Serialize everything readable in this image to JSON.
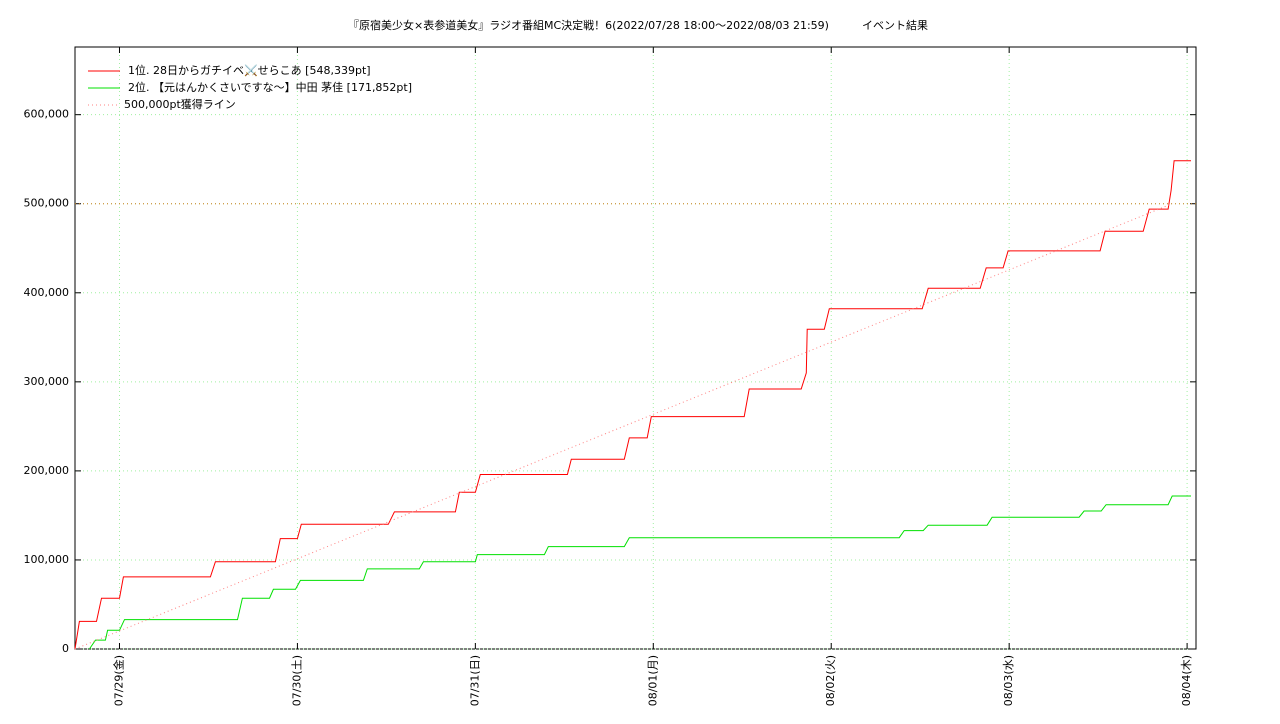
{
  "chart_data": {
    "type": "line",
    "title": "『原宿美少女×表参道美女』ラジオ番組MC決定戦！6(2022/07/28 18:00～2022/08/03 21:59)　　　イベント結果",
    "xlim": [
      -0.25,
      6.05
    ],
    "xticks": [
      {
        "value": 0,
        "label": "07/29(金)"
      },
      {
        "value": 1,
        "label": "07/30(土)"
      },
      {
        "value": 2,
        "label": "07/31(日)"
      },
      {
        "value": 3,
        "label": "08/01(月)"
      },
      {
        "value": 4,
        "label": "08/02(火)"
      },
      {
        "value": 5,
        "label": "08/03(水)"
      },
      {
        "value": 6,
        "label": "08/04(木)"
      }
    ],
    "ylim": [
      0,
      676000
    ],
    "yticks": [
      0,
      {
        "value": 100000,
        "label": "100,000"
      },
      {
        "value": 200000,
        "label": "200,000"
      },
      {
        "value": 300000,
        "label": "300,000"
      },
      {
        "value": 400000,
        "label": "400,000"
      },
      {
        "value": 500000,
        "label": "500,000"
      },
      {
        "value": 600000,
        "label": "600,000"
      }
    ],
    "grid": true,
    "grid_color": "#a0f0a0",
    "legend": "top-left",
    "hline": {
      "value": 500000,
      "color": "#d08020"
    },
    "series": [
      {
        "name": "1位. 28日からガチイベ⚔️せらこあ [548,339pt]",
        "color": "#ff0000",
        "style": "solid",
        "x": [
          -0.25,
          -0.225,
          -0.129,
          -0.101,
          0,
          0.022,
          0.511,
          0.539,
          0.876,
          0.904,
          1.0,
          1.022,
          1.511,
          1.545,
          1.888,
          1.91,
          2.0,
          2.028,
          2.517,
          2.539,
          2.837,
          2.865,
          2.966,
          2.989,
          3.511,
          3.539,
          3.831,
          3.86,
          3.865,
          3.961,
          3.989,
          4.511,
          4.545,
          4.837,
          4.871,
          4.966,
          4.994,
          5.511,
          5.539,
          5.753,
          5.787,
          5.893,
          5.91,
          5.927,
          6.022
        ],
        "values": [
          0,
          31000,
          31000,
          57000,
          57000,
          81000,
          81000,
          98000,
          98000,
          124000,
          124000,
          140000,
          140000,
          154000,
          154000,
          176000,
          176000,
          196000,
          196000,
          213000,
          213000,
          237000,
          237000,
          261000,
          261000,
          292000,
          292000,
          310000,
          359000,
          359000,
          382000,
          382000,
          405000,
          405000,
          428000,
          428000,
          447000,
          447000,
          469000,
          469000,
          494000,
          494000,
          515000,
          548339,
          548339
        ]
      },
      {
        "name": "2位. 【元はんかくさいですな〜】中田 茅佳 [171,852pt]",
        "color": "#00e000",
        "style": "solid",
        "x": [
          -0.169,
          -0.135,
          -0.079,
          -0.067,
          0,
          0.028,
          0.663,
          0.691,
          0.843,
          0.865,
          0.989,
          1.017,
          1.371,
          1.393,
          1.685,
          1.708,
          2.0,
          2.011,
          2.388,
          2.41,
          2.837,
          2.865,
          4.382,
          4.41,
          4.517,
          4.545,
          4.876,
          4.904,
          5.393,
          5.421,
          5.517,
          5.545,
          5.893,
          5.916,
          6.022
        ],
        "values": [
          0,
          10000,
          10000,
          21000,
          21000,
          33000,
          33000,
          57000,
          57000,
          67000,
          67000,
          77000,
          77000,
          90000,
          90000,
          98000,
          98000,
          106000,
          106000,
          115000,
          115000,
          125000,
          125000,
          133000,
          133000,
          139000,
          139000,
          148000,
          148000,
          155000,
          155000,
          162000,
          162000,
          171852,
          171852
        ]
      },
      {
        "name": "500,000pt獲得ライン",
        "color": "#ff8080",
        "style": "dotted",
        "x": [
          -0.25,
          5.916
        ],
        "values": [
          0,
          500000
        ]
      }
    ]
  }
}
